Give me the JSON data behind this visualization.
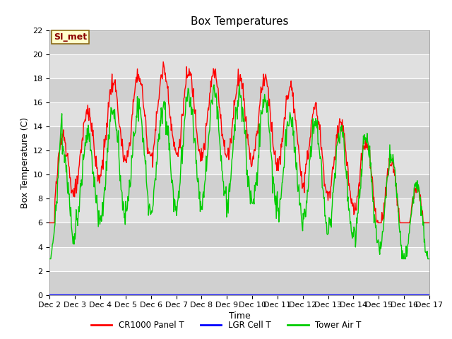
{
  "title": "Box Temperatures",
  "xlabel": "Time",
  "ylabel": "Box Temperature (C)",
  "ylim": [
    0,
    22
  ],
  "yticks": [
    0,
    2,
    4,
    6,
    8,
    10,
    12,
    14,
    16,
    18,
    20,
    22
  ],
  "x_labels": [
    "Dec 2",
    "Dec 3",
    "Dec 4",
    "Dec 5",
    "Dec 6",
    "Dec 7",
    "Dec 8",
    "Dec 9",
    "Dec 10",
    "Dec 11",
    "Dec 12",
    "Dec 13",
    "Dec 14",
    "Dec 15",
    "Dec 16",
    "Dec 17"
  ],
  "bg_color": "#ffffff",
  "annotation_text": "SI_met",
  "annotation_bg": "#ffffcc",
  "annotation_border": "#8b6914",
  "legend_colors": [
    "#ff0000",
    "#0000ff",
    "#00cc00"
  ],
  "title_fontsize": 11,
  "axis_fontsize": 9,
  "tick_fontsize": 8,
  "band_colors": [
    "#d0d0d0",
    "#e0e0e0"
  ],
  "grid_color": "#ffffff",
  "line_colors": [
    "#ff0000",
    "#0000ff",
    "#00cc00"
  ],
  "line_width": 1.0
}
